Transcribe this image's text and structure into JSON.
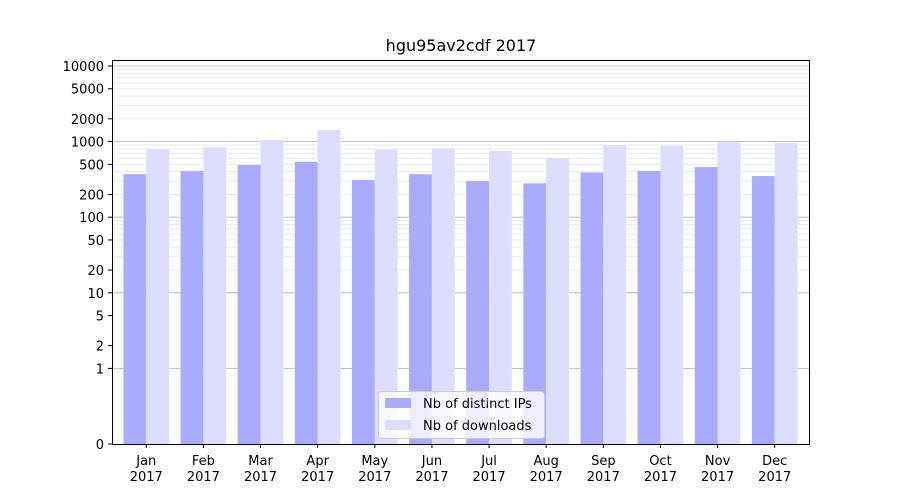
{
  "chart_data": {
    "type": "bar",
    "title": "hgu95av2cdf 2017",
    "xlabel": "",
    "ylabel": "",
    "yscale": "symlog",
    "ylim": [
      0,
      12000
    ],
    "yticks": [
      0,
      1,
      2,
      5,
      10,
      20,
      50,
      100,
      200,
      500,
      1000,
      2000,
      5000,
      10000
    ],
    "ytick_labels": [
      "0",
      "1",
      "2",
      "5",
      "10",
      "20",
      "50",
      "100",
      "200",
      "500",
      "1000",
      "2000",
      "5000",
      "10000"
    ],
    "categories": [
      "Jan\n2017",
      "Feb\n2017",
      "Mar\n2017",
      "Apr\n2017",
      "May\n2017",
      "Jun\n2017",
      "Jul\n2017",
      "Aug\n2017",
      "Sep\n2017",
      "Oct\n2017",
      "Nov\n2017",
      "Dec\n2017"
    ],
    "series": [
      {
        "name": "Nb of distinct IPs",
        "color": "#aaaaff",
        "values": [
          370,
          410,
          490,
          540,
          310,
          370,
          300,
          280,
          390,
          410,
          460,
          350
        ]
      },
      {
        "name": "Nb of downloads",
        "color": "#ddddff",
        "values": [
          800,
          840,
          1050,
          1420,
          780,
          810,
          750,
          600,
          890,
          880,
          980,
          960
        ]
      }
    ],
    "grid": "y",
    "legend_position": "lower-center"
  }
}
